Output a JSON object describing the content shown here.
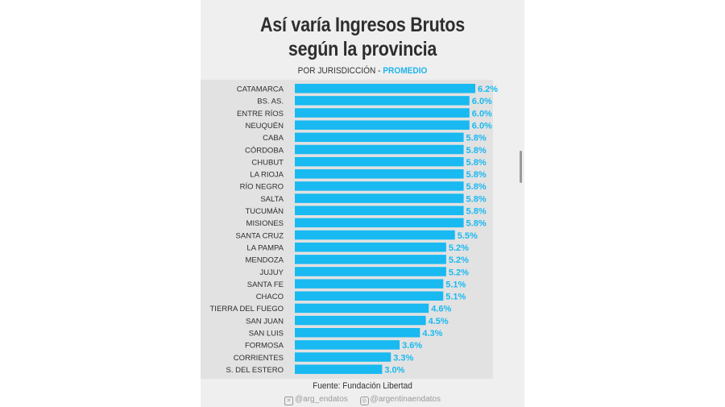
{
  "title_line1": "Así varía Ingresos Brutos",
  "title_line2": "según la provincia",
  "subtitle_prefix": "POR JURISDICCIÓN - ",
  "subtitle_accent": "PROMEDIO",
  "source": "Fuente: Fundación Libertad",
  "handle_x": "@arg_endatos",
  "handle_ig": "@argentinaendatos",
  "colors": {
    "bar": "#19b9f1",
    "label": "#19b9f1",
    "text": "#2e2e2e"
  },
  "chart_data": {
    "type": "bar",
    "orientation": "horizontal",
    "title": "Así varía Ingresos Brutos según la provincia",
    "subtitle": "POR JURISDICCIÓN - PROMEDIO",
    "categories": [
      "CATAMARCA",
      "BS. AS.",
      "ENTRE RÍOS",
      "NEUQUÉN",
      "CABA",
      "CÓRDOBA",
      "CHUBUT",
      "LA RIOJA",
      "RÍO NEGRO",
      "SALTA",
      "TUCUMÁN",
      "MISIONES",
      "SANTA CRUZ",
      "LA PAMPA",
      "MENDOZA",
      "JUJUY",
      "SANTA FE",
      "CHACO",
      "TIERRA DEL FUEGO",
      "SAN JUAN",
      "SAN LUIS",
      "FORMOSA",
      "CORRIENTES",
      "S. DEL ESTERO"
    ],
    "values": [
      6.2,
      6.0,
      6.0,
      6.0,
      5.8,
      5.8,
      5.8,
      5.8,
      5.8,
      5.8,
      5.8,
      5.8,
      5.5,
      5.2,
      5.2,
      5.2,
      5.1,
      5.1,
      4.6,
      4.5,
      4.3,
      3.6,
      3.3,
      3.0
    ],
    "value_labels": [
      "6.2%",
      "6.0%",
      "6.0%",
      "6.0%",
      "5.8%",
      "5.8%",
      "5.8%",
      "5.8%",
      "5.8%",
      "5.8%",
      "5.8%",
      "5.8%",
      "5.5%",
      "5.2%",
      "5.2%",
      "5.2%",
      "5.1%",
      "5.1%",
      "4.6%",
      "4.5%",
      "4.3%",
      "3.6%",
      "3.3%",
      "3.0%"
    ],
    "xlim": [
      0,
      6.2
    ],
    "grid": false,
    "legend": "none"
  }
}
